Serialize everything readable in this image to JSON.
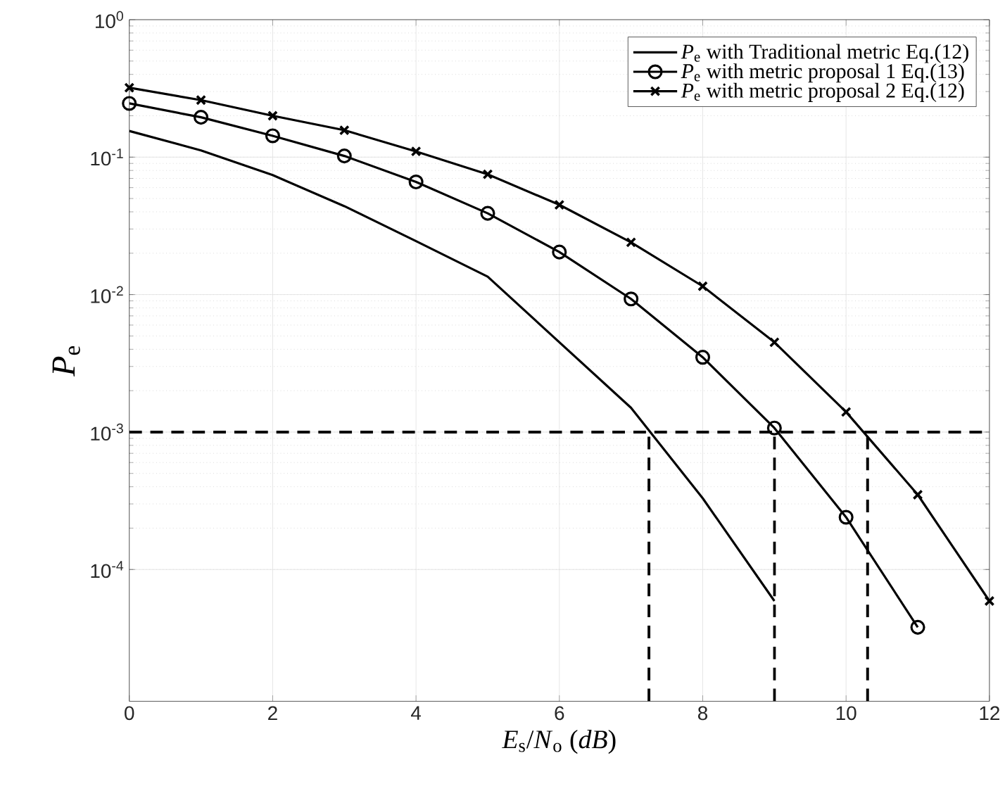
{
  "chart_data": {
    "type": "line",
    "xlabel": "*E*$_{s}$/*N*$_{o}$ (*dB*)",
    "ylabel": "*P*$_{e}$",
    "log": "y",
    "grid": true,
    "legend": "top right",
    "xlim": [
      0,
      12
    ],
    "ylim": [
      1.1e-05,
      1
    ],
    "xticks": [
      0,
      2,
      4,
      6,
      8,
      10,
      12
    ],
    "yticks": [
      {
        "value": 0.0001,
        "label": "10$^{-4}$"
      },
      {
        "value": 0.001,
        "label": "10$^{-3}$"
      },
      {
        "value": 0.01,
        "label": "10$^{-2}$"
      },
      {
        "value": 0.1,
        "label": "10$^{-1}$"
      },
      {
        "value": 1,
        "label": "10$^{0}$"
      }
    ],
    "series": [
      {
        "name": "*P*$_{e}$ with Traditional metric Eq.(12)",
        "color": "#000000",
        "marker": "none",
        "line_style": "solid",
        "x": [
          0,
          1,
          2,
          3,
          4,
          5,
          6,
          7,
          8,
          9
        ],
        "values": [
          0.155,
          0.112,
          0.074,
          0.044,
          0.0245,
          0.0135,
          0.0045,
          0.0015,
          0.00033,
          5.9e-05
        ]
      },
      {
        "name": "*P*$_{e}$ with metric proposal 1 Eq.(13)",
        "color": "#000000",
        "marker": "circle",
        "line_style": "solid",
        "x": [
          0,
          1,
          2,
          3,
          4,
          5,
          6,
          7,
          8,
          9,
          10,
          11
        ],
        "values": [
          0.246,
          0.195,
          0.143,
          0.102,
          0.066,
          0.039,
          0.0204,
          0.0093,
          0.0035,
          0.00107,
          0.00024,
          3.8e-05
        ]
      },
      {
        "name": "*P*$_{e}$ with metric proposal 2 Eq.(12)",
        "color": "#000000",
        "marker": "cross",
        "line_style": "solid",
        "x": [
          0,
          1,
          2,
          3,
          4,
          5,
          6,
          7,
          8,
          9,
          10,
          11,
          12
        ],
        "values": [
          0.32,
          0.26,
          0.2,
          0.157,
          0.11,
          0.075,
          0.045,
          0.024,
          0.0115,
          0.0045,
          0.0014,
          0.00035,
          5.9e-05
        ]
      },
      {
        "color": "#000000",
        "marker": "none",
        "line_style": "dashed",
        "x": [
          0,
          12
        ],
        "values": [
          0.001,
          0.001
        ]
      },
      {
        "color": "#000000",
        "marker": "none",
        "line_style": "dashed",
        "x": [
          7.25,
          7.25
        ],
        "values": [
          1.1e-05,
          0.001
        ]
      },
      {
        "color": "#000000",
        "marker": "none",
        "line_style": "dashed",
        "x": [
          9,
          9
        ],
        "values": [
          1.1e-05,
          0.001
        ]
      },
      {
        "color": "#000000",
        "marker": "none",
        "line_style": "dashed",
        "x": [
          10.3,
          10.3
        ],
        "values": [
          1.1e-05,
          0.001
        ]
      }
    ]
  }
}
